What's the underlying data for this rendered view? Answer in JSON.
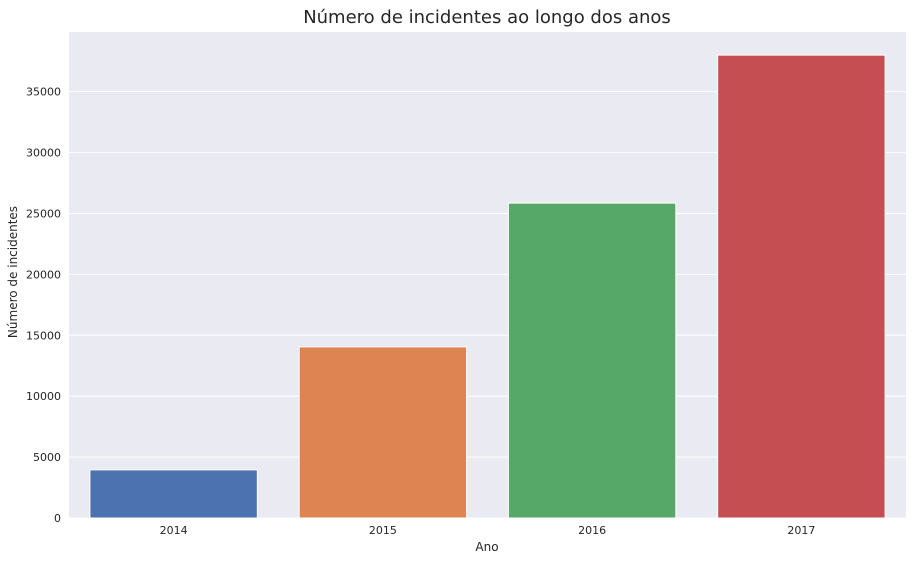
{
  "chart_data": {
    "type": "bar",
    "title": "Número de incidentes ao longo dos anos",
    "xlabel": "Ano",
    "ylabel": "Número de incidentes",
    "categories": [
      "2014",
      "2015",
      "2016",
      "2017"
    ],
    "values": [
      3950,
      14050,
      25850,
      38000
    ],
    "colors": [
      "#4c72b0",
      "#dd8452",
      "#55a868",
      "#c44e52"
    ],
    "ylim": [
      0,
      39900
    ],
    "yticks": [
      0,
      5000,
      10000,
      15000,
      20000,
      25000,
      30000,
      35000
    ],
    "grid": true,
    "background": "#eaeaf2"
  }
}
